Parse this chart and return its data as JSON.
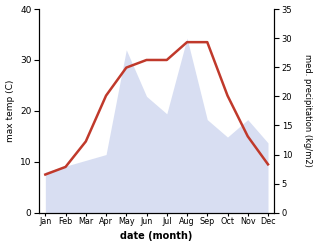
{
  "months": [
    "Jan",
    "Feb",
    "Mar",
    "Apr",
    "May",
    "Jun",
    "Jul",
    "Aug",
    "Sep",
    "Oct",
    "Nov",
    "Dec"
  ],
  "temp": [
    7.5,
    9.0,
    14.0,
    23.0,
    28.5,
    30.0,
    30.0,
    33.5,
    33.5,
    23.0,
    15.0,
    9.5
  ],
  "precip": [
    7,
    8,
    9,
    10,
    28,
    20,
    17,
    30,
    16,
    13,
    16,
    12
  ],
  "temp_color": "#c0392b",
  "precip_fill_color": "#b8c4e8",
  "ylabel_left": "max temp (C)",
  "ylabel_right": "med. precipitation (kg/m2)",
  "xlabel": "date (month)",
  "ylim_left": [
    0,
    40
  ],
  "ylim_right": [
    0,
    35
  ],
  "yticks_left": [
    0,
    10,
    20,
    30,
    40
  ],
  "yticks_right": [
    0,
    5,
    10,
    15,
    20,
    25,
    30,
    35
  ],
  "bg_color": "#ffffff",
  "temp_linewidth": 1.8,
  "precip_alpha": 0.55
}
